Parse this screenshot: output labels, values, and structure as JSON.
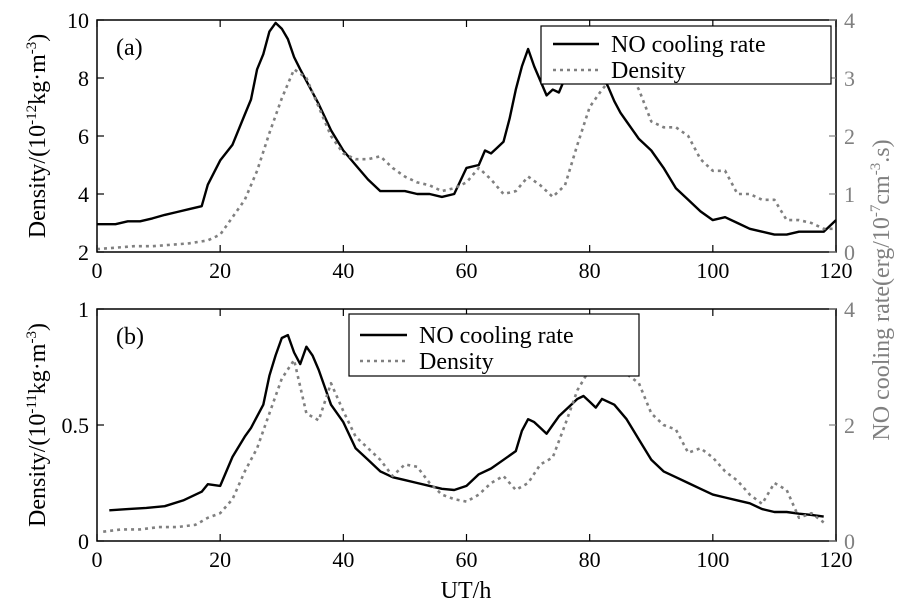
{
  "chart_data": [
    {
      "type": "line",
      "panel_label": "(a)",
      "xlabel": "",
      "ylabel": "Density/(10",
      "ylabel_sup": "-12",
      "ylabel_tail": "kg·m",
      "ylabel_sup2": "-3",
      "ylabel_end": ")",
      "y2label": "NO cooling rate(erg/10",
      "y2label_sup": "-7",
      "y2label_mid": "cm",
      "y2label_sup2": "-3",
      "y2label_end": ".s)",
      "xlim": [
        0,
        120
      ],
      "ylim": [
        2,
        10
      ],
      "y2lim": [
        0,
        4
      ],
      "xticks": [
        0,
        20,
        40,
        60,
        80,
        100,
        120
      ],
      "yticks": [
        2,
        4,
        6,
        8,
        10
      ],
      "y2ticks": [
        0,
        1,
        2,
        3,
        4
      ],
      "legend_position": "top-right",
      "series": [
        {
          "name": "NO cooling rate",
          "axis": "right",
          "style": "solid",
          "color": "#000000",
          "x": [
            0,
            3,
            5,
            7,
            9,
            11,
            13,
            15,
            17,
            18,
            20,
            22,
            24,
            25,
            26,
            27,
            28,
            29,
            30,
            31,
            32,
            33,
            34,
            36,
            38,
            40,
            42,
            44,
            46,
            48,
            50,
            52,
            54,
            56,
            58,
            60,
            62,
            63,
            64,
            65,
            66,
            67,
            68,
            69,
            70,
            71,
            72,
            73,
            74,
            75,
            76,
            77,
            78,
            79,
            80,
            82,
            83,
            84,
            85,
            86,
            88,
            90,
            92,
            94,
            96,
            98,
            100,
            102,
            104,
            106,
            108,
            110,
            112,
            114,
            116,
            118,
            120
          ],
          "values": [
            0.48,
            0.48,
            0.53,
            0.53,
            0.58,
            0.64,
            0.69,
            0.74,
            0.79,
            1.16,
            1.58,
            1.85,
            2.37,
            2.63,
            3.15,
            3.41,
            3.8,
            3.95,
            3.85,
            3.67,
            3.36,
            3.15,
            2.95,
            2.55,
            2.1,
            1.75,
            1.5,
            1.25,
            1.05,
            1.05,
            1.05,
            1.0,
            1.0,
            0.95,
            1.0,
            1.45,
            1.5,
            1.75,
            1.7,
            1.8,
            1.9,
            2.3,
            2.8,
            3.2,
            3.5,
            3.2,
            2.95,
            2.7,
            2.8,
            2.75,
            3.0,
            3.05,
            3.2,
            3.25,
            3.35,
            3.05,
            2.85,
            2.6,
            2.4,
            2.25,
            1.95,
            1.75,
            1.45,
            1.1,
            0.9,
            0.7,
            0.55,
            0.6,
            0.5,
            0.4,
            0.35,
            0.3,
            0.3,
            0.35,
            0.35,
            0.35,
            0.55
          ]
        },
        {
          "name": "Density",
          "axis": "left",
          "style": "dotted",
          "color": "#808080",
          "x": [
            0,
            3,
            6,
            9,
            12,
            15,
            18,
            20,
            22,
            24,
            26,
            28,
            30,
            32,
            34,
            36,
            38,
            40,
            42,
            44,
            46,
            48,
            50,
            52,
            54,
            56,
            58,
            60,
            62,
            64,
            66,
            68,
            70,
            72,
            74,
            76,
            78,
            80,
            82,
            84,
            86,
            88,
            90,
            92,
            94,
            96,
            98,
            100,
            102,
            104,
            106,
            108,
            110,
            112,
            114,
            116,
            118,
            120
          ],
          "values": [
            2.1,
            2.15,
            2.2,
            2.2,
            2.25,
            2.3,
            2.4,
            2.6,
            3.2,
            3.8,
            4.8,
            6.1,
            7.3,
            8.3,
            8.0,
            7.0,
            6.0,
            5.4,
            5.2,
            5.2,
            5.3,
            4.9,
            4.6,
            4.4,
            4.3,
            4.1,
            4.2,
            4.4,
            4.9,
            4.5,
            4.0,
            4.1,
            4.6,
            4.3,
            3.9,
            4.3,
            5.7,
            7.0,
            7.6,
            8.1,
            8.4,
            7.6,
            6.5,
            6.3,
            6.3,
            6.0,
            5.2,
            4.8,
            4.8,
            4.0,
            4.0,
            3.8,
            3.8,
            3.1,
            3.1,
            3.0,
            2.8,
            2.8
          ]
        }
      ]
    },
    {
      "type": "line",
      "panel_label": "(b)",
      "xlabel": "UT/h",
      "ylabel": "Density/(10",
      "ylabel_sup": "-11",
      "ylabel_tail": "kg·m",
      "ylabel_sup2": "-3",
      "ylabel_end": ")",
      "xlim": [
        0,
        120
      ],
      "ylim": [
        0,
        1
      ],
      "y2lim": [
        0,
        4
      ],
      "xticks": [
        0,
        20,
        40,
        60,
        80,
        100,
        120
      ],
      "yticks": [
        0,
        0.5,
        1
      ],
      "ytick_labels": [
        "0",
        "0.5",
        "1"
      ],
      "y2ticks": [
        0,
        2,
        4
      ],
      "legend_position": "top-center",
      "series": [
        {
          "name": "NO cooling rate",
          "axis": "right",
          "style": "solid",
          "color": "#000000",
          "x": [
            2,
            5,
            8,
            11,
            14,
            17,
            18,
            20,
            22,
            24,
            25,
            27,
            28,
            29,
            30,
            31,
            32,
            33,
            34,
            35,
            36,
            38,
            40,
            42,
            44,
            46,
            48,
            50,
            52,
            54,
            56,
            58,
            60,
            62,
            64,
            66,
            68,
            69,
            70,
            71,
            72,
            73,
            74,
            75,
            76,
            77,
            78,
            79,
            80,
            81,
            82,
            83,
            84,
            86,
            88,
            90,
            92,
            94,
            96,
            98,
            100,
            102,
            104,
            106,
            108,
            110,
            112,
            114,
            116,
            118
          ],
          "values": [
            0.53,
            0.55,
            0.57,
            0.6,
            0.7,
            0.85,
            0.98,
            0.95,
            1.45,
            1.8,
            1.95,
            2.35,
            2.85,
            3.2,
            3.5,
            3.55,
            3.25,
            3.05,
            3.35,
            3.2,
            2.95,
            2.35,
            2.05,
            1.6,
            1.4,
            1.2,
            1.1,
            1.05,
            1.0,
            0.95,
            0.9,
            0.88,
            0.95,
            1.15,
            1.25,
            1.4,
            1.55,
            1.9,
            2.1,
            2.05,
            1.95,
            1.85,
            2.0,
            2.15,
            2.25,
            2.35,
            2.45,
            2.5,
            2.4,
            2.3,
            2.45,
            2.4,
            2.35,
            2.1,
            1.75,
            1.4,
            1.2,
            1.1,
            1.0,
            0.9,
            0.8,
            0.75,
            0.7,
            0.65,
            0.55,
            0.5,
            0.5,
            0.47,
            0.45,
            0.42
          ]
        },
        {
          "name": "Density",
          "axis": "left",
          "style": "dotted",
          "color": "#808080",
          "x": [
            1,
            4,
            7,
            10,
            13,
            16,
            18,
            20,
            22,
            24,
            26,
            28,
            30,
            32,
            34,
            36,
            38,
            40,
            42,
            44,
            46,
            48,
            50,
            52,
            54,
            56,
            58,
            60,
            62,
            64,
            66,
            68,
            70,
            72,
            74,
            76,
            78,
            80,
            82,
            84,
            86,
            88,
            90,
            92,
            94,
            96,
            98,
            100,
            102,
            104,
            106,
            108,
            110,
            112,
            114,
            116,
            118
          ],
          "values": [
            0.04,
            0.05,
            0.05,
            0.06,
            0.06,
            0.07,
            0.1,
            0.12,
            0.18,
            0.3,
            0.4,
            0.55,
            0.7,
            0.78,
            0.55,
            0.52,
            0.68,
            0.56,
            0.45,
            0.4,
            0.35,
            0.28,
            0.33,
            0.32,
            0.25,
            0.2,
            0.18,
            0.17,
            0.2,
            0.25,
            0.28,
            0.22,
            0.25,
            0.33,
            0.36,
            0.5,
            0.65,
            0.74,
            0.78,
            0.74,
            0.72,
            0.68,
            0.55,
            0.5,
            0.48,
            0.38,
            0.4,
            0.36,
            0.3,
            0.26,
            0.2,
            0.16,
            0.25,
            0.22,
            0.1,
            0.12,
            0.08
          ]
        }
      ]
    }
  ]
}
